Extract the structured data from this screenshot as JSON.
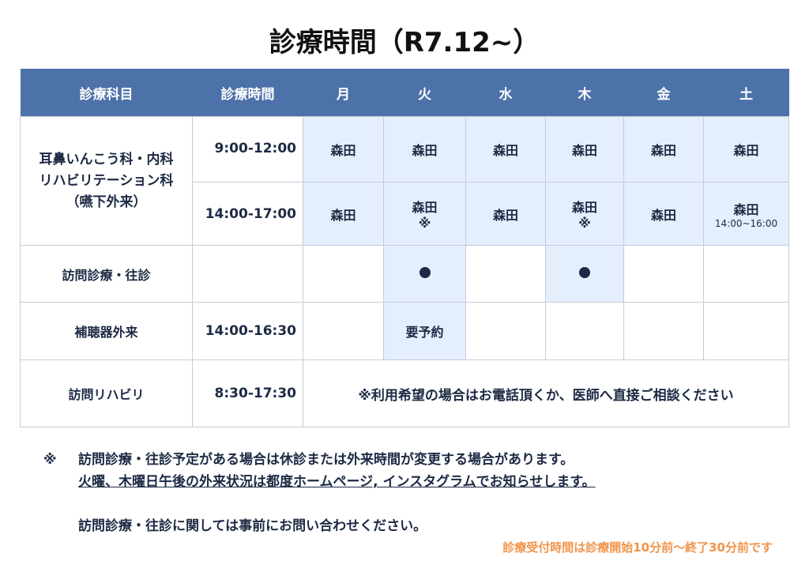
{
  "title": "診療時間（R7.12~）",
  "header": [
    "診療科目",
    "診療時間",
    "月",
    "火",
    "水",
    "木",
    "金",
    "土"
  ],
  "rows": {
    "ent": {
      "dept": [
        "耳鼻いんこう科・内科",
        "リハビリテーション科",
        "（嚥下外来）"
      ],
      "am": {
        "time": "9:00-12:00",
        "cells": [
          "森田",
          "森田",
          "森田",
          "森田",
          "森田",
          "森田"
        ]
      },
      "pm": {
        "time": "14:00-17:00",
        "cells": [
          "森田",
          "森田",
          "森田",
          "森田",
          "森田",
          "森田"
        ],
        "tue_mark": "※",
        "thu_mark": "※",
        "sat_note": "14:00~16:00"
      }
    },
    "visit": {
      "dept": "訪問診療・往診",
      "time": "",
      "dots": [
        "火",
        "木"
      ]
    },
    "hearing": {
      "dept": "補聴器外来",
      "time": "14:00-16:30",
      "tue": "要予約"
    },
    "rehab": {
      "dept": "訪問リハビリ",
      "time": "8:30-17:30",
      "note": "※利用希望の場合はお電話頂くか、医師へ直接ご相談ください"
    }
  },
  "notes": {
    "mark": "※",
    "line1": "訪問診療・往診予定がある場合は休診または外来時間が変更する場合があります。",
    "line2": "火曜、木曜日午後の外来状況は都度ホームページ, インスタグラムでお知らせします。",
    "line3": "訪問診療・往診に関しては事前にお問い合わせください。"
  },
  "reception": "診療受付時間は診療開始10分前～終了30分前です",
  "colors": {
    "header": "#4d72aa",
    "shaded": "#e4eefc",
    "text": "#1d2a44",
    "accent": "#f0944a"
  }
}
